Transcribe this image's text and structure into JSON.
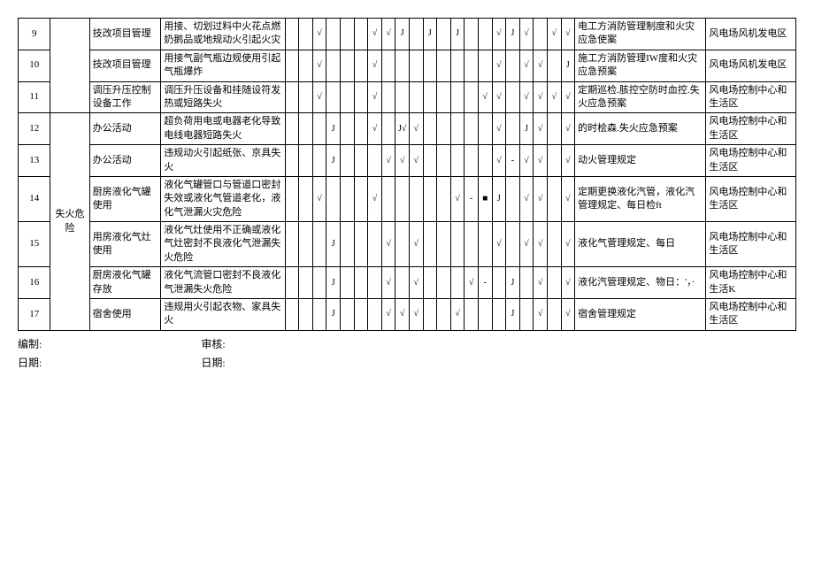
{
  "footer": {
    "prepared_label": "编制:",
    "reviewed_label": "审核:",
    "date_label": "日期:"
  },
  "risk_category": "失火危险",
  "rows": [
    {
      "no": "9",
      "cat": "",
      "act": "技改项目管理",
      "haz": "用接、切划过料中火花点燃奶鹅品或地规动火引起火灾",
      "marks": [
        "",
        "",
        "√",
        "",
        "",
        "",
        "√",
        "√",
        "J",
        "",
        "J",
        "",
        "J",
        "",
        "",
        "√",
        "J",
        "√",
        "",
        "√",
        "√"
      ],
      "meas": "电工方消防管理制度和火灾应急使案",
      "loc": "风电场风机发电区"
    },
    {
      "no": "10",
      "cat": "",
      "act": "技改项目管理",
      "haz": "用接气副气瓶边规使用引起气瓶爆炸",
      "marks": [
        "",
        "",
        "√",
        "",
        "",
        "",
        "√",
        "",
        "",
        "",
        "",
        "",
        "",
        "",
        "",
        "√",
        "",
        "√",
        "√",
        "",
        "J"
      ],
      "meas": "施工方消防管理IW度和火灾应急预案",
      "loc": "风电场风机发电区"
    },
    {
      "no": "11",
      "cat": "",
      "act": "调压升压控制设备工作",
      "haz": "调压升压设备和挂随设符发热或短路失火",
      "marks": [
        "",
        "",
        "√",
        "",
        "",
        "",
        "√",
        "",
        "",
        "",
        "",
        "",
        "",
        "",
        "√",
        "√",
        "",
        "√",
        "√",
        "√",
        "√"
      ],
      "meas": "定期巡检.胲控空防时血控.失火应急预案",
      "loc": "风电场控制中心和生活区"
    },
    {
      "no": "12",
      "cat": "失火危险",
      "act": "办公活动",
      "haz": "超负荷用电或电器老化导致电线电器短路失火",
      "marks": [
        "",
        "",
        "",
        "J",
        "",
        "",
        "√",
        "",
        "J√",
        "√",
        "",
        "",
        "",
        "",
        "",
        "√",
        "",
        "J",
        "√",
        "",
        "√"
      ],
      "meas": "的时桧森.失火应急预案",
      "loc": "风电场控制中心和生活区"
    },
    {
      "no": "13",
      "cat": "",
      "act": "办公活动",
      "haz": "违规动火引起纸张、京具失火",
      "marks": [
        "",
        "",
        "",
        "J",
        "",
        "",
        "",
        "√",
        "√",
        "√",
        "",
        "",
        "",
        "",
        "",
        "√",
        "-",
        "√",
        "√",
        "",
        "√"
      ],
      "meas": "动火管理规定",
      "loc": "风电场控制中心和生活区"
    },
    {
      "no": "14",
      "cat": "",
      "act": "厨房液化气罐使用",
      "haz": "液化气罐管口与管道口密封失效或液化气管道老化，液化气泄漏火灾危险",
      "marks": [
        "",
        "",
        "√",
        "",
        "",
        "",
        "√",
        "",
        "",
        "",
        "",
        "",
        "√",
        "-",
        "■",
        "J",
        "",
        "√",
        "√",
        "",
        "√"
      ],
      "meas": "定期更换液化汽管，液化汽管理规定、每日检ft",
      "loc": "风电场控制中心和生活区"
    },
    {
      "no": "15",
      "cat": "",
      "act": "用房液化气灶使用",
      "haz": "液化气灶使用不正确或液化气灶密封不良液化气泄漏失火危险",
      "marks": [
        "",
        "",
        "",
        "J",
        "",
        "",
        "",
        "√",
        "",
        "√",
        "",
        "",
        "",
        "",
        "",
        "√",
        "",
        "√",
        "√",
        "",
        "√"
      ],
      "meas": "液化气菅理规定、每日",
      "loc": "风电场控制中心和生活区"
    },
    {
      "no": "16",
      "cat": "",
      "act": "厨房液化气罐存放",
      "haz": "液化气流管口密封不良液化气泄漏失火危险",
      "marks": [
        "",
        "",
        "",
        "J",
        "",
        "",
        "",
        "√",
        "",
        "√",
        "",
        "",
        "",
        "√",
        "-",
        "",
        "J",
        "",
        "√",
        "",
        "√"
      ],
      "meas": "液化汽管理规定、物日：'，·",
      "loc": "风电场控制中心和生活K"
    },
    {
      "no": "17",
      "cat": "",
      "act": "宿舍使用",
      "haz": "违规用火引起衣物、家具失火",
      "marks": [
        "",
        "",
        "",
        "J",
        "",
        "",
        "",
        "√",
        "√",
        "√",
        "",
        "",
        "√",
        "",
        "",
        "",
        "J",
        "",
        "√",
        "",
        "√"
      ],
      "meas": "宿舍管理规定",
      "loc": "风电场控制中心和生活区"
    }
  ]
}
